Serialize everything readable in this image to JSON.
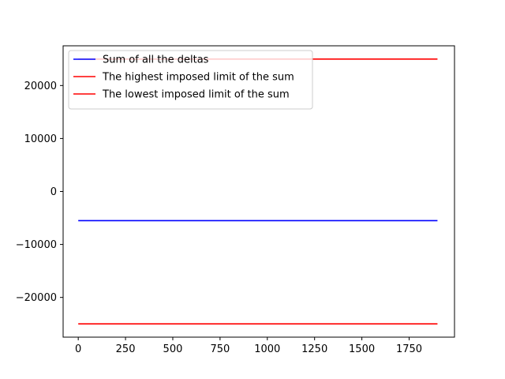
{
  "chart_data": {
    "type": "line",
    "title": "",
    "xlabel": "",
    "ylabel": "",
    "xlim": [
      -80,
      1990
    ],
    "ylim": [
      -27500,
      27500
    ],
    "x_ticks": [
      0,
      250,
      500,
      750,
      1000,
      1250,
      1500,
      1750
    ],
    "x_tick_labels": [
      "0",
      "250",
      "500",
      "750",
      "1000",
      "1250",
      "1500",
      "1750"
    ],
    "y_ticks": [
      -20000,
      -10000,
      0,
      10000,
      20000
    ],
    "y_tick_labels": [
      "−20000",
      "−10000",
      "0",
      "10000",
      "20000"
    ],
    "grid": false,
    "legend_position": "top-left",
    "series": [
      {
        "name": "Sum of all the deltas",
        "color": "#0000ff",
        "x": [
          0,
          1900
        ],
        "y": [
          -5500,
          -5500
        ]
      },
      {
        "name": "The highest imposed limit of the sum",
        "color": "#ff0000",
        "x": [
          0,
          1900
        ],
        "y": [
          25000,
          25000
        ]
      },
      {
        "name": "The lowest imposed limit of the sum",
        "color": "#ff0000",
        "x": [
          0,
          1900
        ],
        "y": [
          -25000,
          -25000
        ]
      }
    ]
  }
}
